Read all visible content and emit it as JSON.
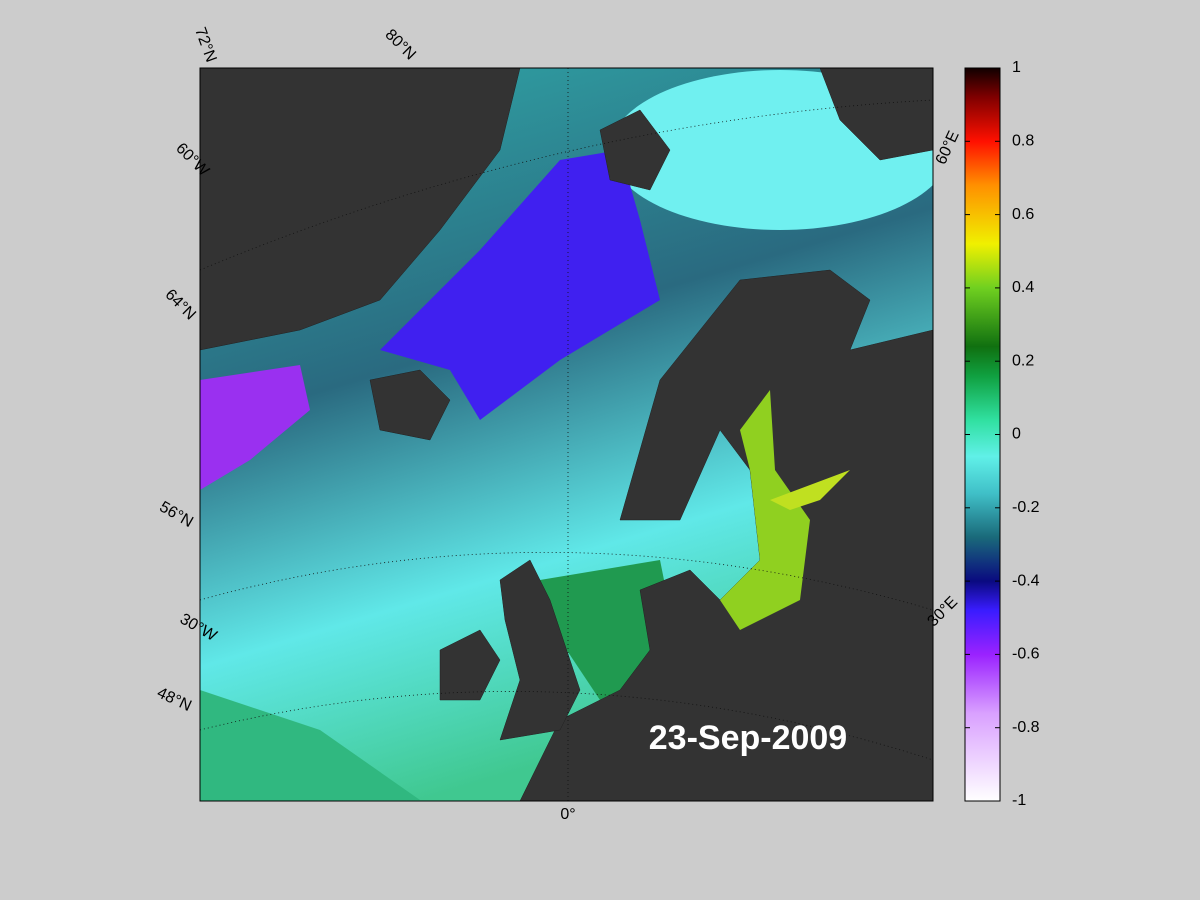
{
  "map": {
    "date": "23-Sep-2009",
    "graticule_labels": [
      "72°N",
      "80°N",
      "60°W",
      "64°N",
      "56°N",
      "30°W",
      "48°N",
      "0°",
      "60°E",
      "30°E"
    ]
  },
  "colorbar": {
    "lim": [
      -1,
      1
    ],
    "ticks": [
      1,
      0.8,
      0.6,
      0.4,
      0.2,
      0,
      -0.2,
      -0.4,
      -0.6,
      -0.8,
      -1
    ]
  }
}
